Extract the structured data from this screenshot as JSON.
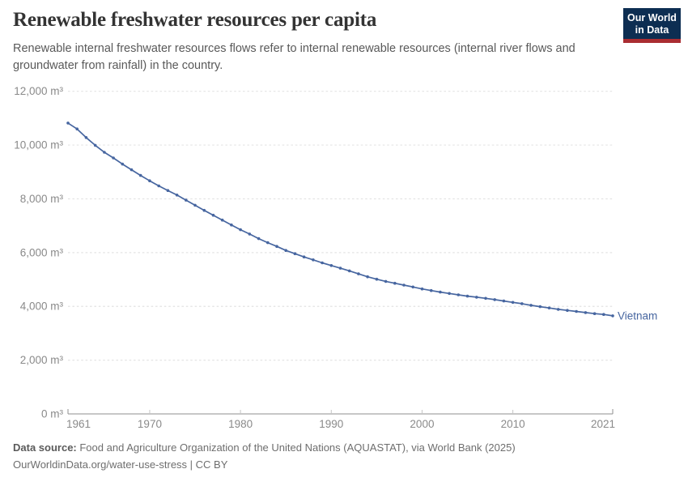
{
  "header": {
    "title": "Renewable freshwater resources per capita",
    "subtitle": "Renewable internal freshwater resources flows refer to internal renewable resources (internal river flows and groundwater from rainfall) in the country.",
    "logo": {
      "line1": "Our World",
      "line2": "in Data"
    }
  },
  "colors": {
    "series_blue": "#4766a0",
    "grid": "#e4e4e4",
    "axis": "#8f8f8f",
    "tick": "#c6c6c6",
    "tick_label": "#8a8a8a",
    "logo_navy": "#0d2e52",
    "logo_red": "#aa2d32"
  },
  "chart_data": {
    "type": "line",
    "title": "Renewable freshwater resources per capita",
    "unit": "m³",
    "ylim": [
      0,
      12000
    ],
    "yticks": [
      0,
      2000,
      4000,
      6000,
      8000,
      10000,
      12000
    ],
    "ytick_labels": [
      "0 m³",
      "2,000 m³",
      "4,000 m³",
      "6,000 m³",
      "8,000 m³",
      "10,000 m³",
      "12,000 m³"
    ],
    "xticks": [
      1961,
      1970,
      1980,
      1990,
      2000,
      2010,
      2021
    ],
    "xtick_labels": [
      "1961",
      "1970",
      "1980",
      "1990",
      "2000",
      "2010",
      "2021"
    ],
    "grid": "horizontal-dashed",
    "legend_position": "end-of-line-label",
    "series": [
      {
        "name": "Vietnam",
        "color": "#4766a0",
        "years": [
          1961,
          1962,
          1963,
          1964,
          1965,
          1966,
          1967,
          1968,
          1969,
          1970,
          1971,
          1972,
          1973,
          1974,
          1975,
          1976,
          1977,
          1978,
          1979,
          1980,
          1981,
          1982,
          1983,
          1984,
          1985,
          1986,
          1987,
          1988,
          1989,
          1990,
          1991,
          1992,
          1993,
          1994,
          1995,
          1996,
          1997,
          1998,
          1999,
          2000,
          2001,
          2002,
          2003,
          2004,
          2005,
          2006,
          2007,
          2008,
          2009,
          2010,
          2011,
          2012,
          2013,
          2014,
          2015,
          2016,
          2017,
          2018,
          2019,
          2020,
          2021
        ],
        "values": [
          10820,
          10600,
          10280,
          9990,
          9730,
          9520,
          9290,
          9080,
          8870,
          8670,
          8480,
          8310,
          8140,
          7950,
          7760,
          7570,
          7390,
          7210,
          7030,
          6850,
          6690,
          6520,
          6370,
          6230,
          6080,
          5960,
          5840,
          5730,
          5620,
          5520,
          5420,
          5320,
          5210,
          5100,
          5010,
          4930,
          4860,
          4790,
          4720,
          4650,
          4590,
          4530,
          4480,
          4430,
          4380,
          4340,
          4300,
          4250,
          4200,
          4150,
          4100,
          4040,
          3990,
          3940,
          3890,
          3850,
          3810,
          3770,
          3730,
          3700,
          3650
        ]
      }
    ]
  },
  "footer": {
    "source_label": "Data source:",
    "source_text": " Food and Agriculture Organization of the United Nations (AQUASTAT), via World Bank (2025)",
    "license_text": "OurWorldinData.org/water-use-stress | CC BY"
  }
}
